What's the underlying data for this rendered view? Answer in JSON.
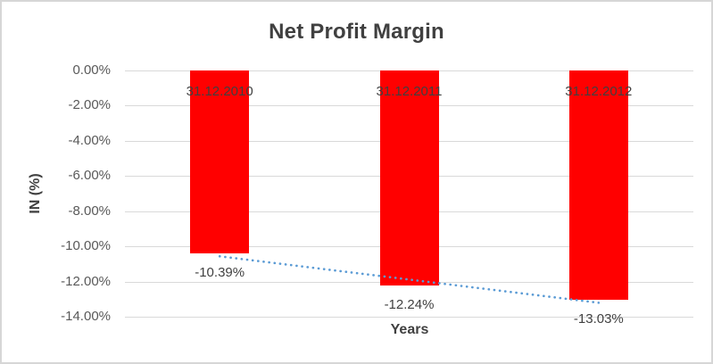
{
  "chart_data": {
    "type": "bar",
    "title": "Net Profit Margin",
    "xlabel": "Years",
    "ylabel": "IN (%)",
    "categories": [
      "31.12.2010",
      "31.12.2011",
      "31.12.2012"
    ],
    "values": [
      -10.39,
      -12.24,
      -13.03
    ],
    "data_labels": [
      "-10.39%",
      "-12.24%",
      "-13.03%"
    ],
    "ylim": [
      -14,
      0
    ],
    "ytick_labels": [
      "0.00%",
      "-2.00%",
      "-4.00%",
      "-6.00%",
      "-8.00%",
      "-10.00%",
      "-12.00%",
      "-14.00%"
    ],
    "grid": true,
    "legend": "none",
    "trendline": {
      "show": true,
      "style": "dotted",
      "fit": "linear"
    }
  },
  "colors": {
    "bar": "#ff0000",
    "trendline": "#5b9bd5",
    "gridline": "#d9d9d9",
    "tick_text": "#595959",
    "label_text": "#404040",
    "title_text": "#404040",
    "frame_border": "#d6d6d6",
    "background": "#ffffff"
  }
}
